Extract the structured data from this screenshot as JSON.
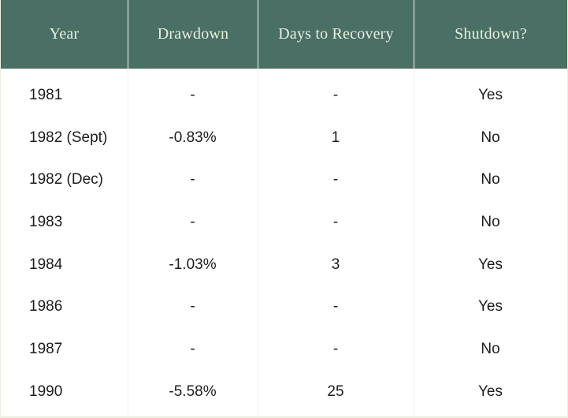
{
  "chart_data": {
    "type": "table",
    "columns": [
      "Year",
      "Drawdown",
      "Days to Recovery",
      "Shutdown?"
    ],
    "rows": [
      [
        "1981",
        "-",
        "-",
        "Yes"
      ],
      [
        "1982 (Sept)",
        "-0.83%",
        "1",
        "No"
      ],
      [
        "1982 (Dec)",
        "-",
        "-",
        "No"
      ],
      [
        "1983",
        "-",
        "-",
        "No"
      ],
      [
        "1984",
        "-1.03%",
        "3",
        "Yes"
      ],
      [
        "1986",
        "-",
        "-",
        "Yes"
      ],
      [
        "1987",
        "-",
        "-",
        "No"
      ],
      [
        "1990",
        "-5.58%",
        "25",
        "Yes"
      ]
    ],
    "layout_hints": {
      "header_alignment": "center",
      "year_column_alignment": "left",
      "data_columns_alignment": "center",
      "horizontal_row_lines": false,
      "vertical_column_lines": true
    }
  },
  "colors": {
    "header_background": "#4a6f64",
    "header_text": "#e8efe1",
    "header_divider": "#f3f5ea",
    "body_background": "#ffffff",
    "body_text": "#1e1d1b",
    "body_divider": "#f1f1e8",
    "outer_border": "#eef0e4"
  }
}
